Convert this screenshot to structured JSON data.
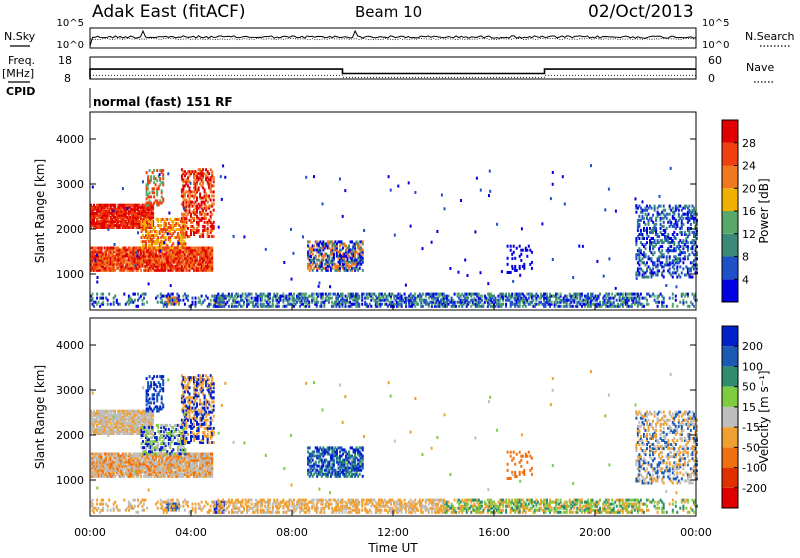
{
  "header": {
    "station": "Adak East (fitACF)",
    "beam": "Beam 10",
    "date": "02/Oct/2013"
  },
  "side_labels": {
    "nsky": "N.Sky",
    "freq": "Freq.",
    "freq_unit": "[MHz]",
    "cpid": "CPID",
    "nsearch": "N.Search",
    "nave": "Nave",
    "power_axis": "Power [dB]",
    "velocity_axis": "Velocity [m s⁻¹]"
  },
  "cpid_text": "normal (fast) 151 RF",
  "colors": {
    "power_scale": [
      "#0000e0",
      "#2050c8",
      "#3b8a78",
      "#58a86a",
      "#f0b000",
      "#f07820",
      "#f04010",
      "#e00000"
    ],
    "velocity_scale": [
      "#0020c8",
      "#1a5ab4",
      "#2f8d6e",
      "#80cc40",
      "#bebebe",
      "#f0a030",
      "#f07010",
      "#e03000",
      "#e00000"
    ],
    "ground_gray": "#bebebe"
  },
  "chart_data": [
    {
      "type": "line",
      "name": "noise",
      "series": [
        {
          "name": "N.Sky",
          "y_ticks": [
            "10^5",
            "10^0"
          ]
        },
        {
          "name": "N.Search",
          "y_ticks": [
            "10^5",
            "10^0"
          ]
        }
      ]
    },
    {
      "type": "line",
      "name": "frequency-nave",
      "left_axis": {
        "label": "Freq. [MHz]",
        "ticks": [
          18,
          8
        ]
      },
      "right_axis": {
        "label": "Nave",
        "ticks": [
          60,
          0
        ]
      },
      "freq_steps": [
        {
          "x_start": 0,
          "x_end": 10,
          "value": 12.5
        },
        {
          "x_start": 10,
          "x_end": 18,
          "value": 10.5
        },
        {
          "x_start": 18,
          "x_end": 24,
          "value": 12.5
        }
      ],
      "nave_level": 10
    },
    {
      "type": "heatmap",
      "name": "power",
      "ylabel": "Slant Range [km]",
      "y_ticks": [
        1000,
        2000,
        3000,
        4000
      ],
      "ylim": [
        200,
        4600
      ],
      "xlim": [
        0,
        24
      ],
      "colorbar_ticks": [
        4,
        8,
        12,
        16,
        20,
        24,
        28
      ],
      "colorbar_label": "Power [dB]"
    },
    {
      "type": "heatmap",
      "name": "velocity",
      "ylabel": "Slant Range [km]",
      "y_ticks": [
        1000,
        2000,
        3000,
        4000
      ],
      "ylim": [
        200,
        4600
      ],
      "xlim": [
        0,
        24
      ],
      "colorbar_ticks": [
        200,
        100,
        50,
        15,
        -15,
        -50,
        -100,
        -200
      ],
      "colorbar_label": "Velocity [m s⁻¹]",
      "x_tick_labels": [
        "00:00",
        "04:00",
        "08:00",
        "12:00",
        "16:00",
        "20:00",
        "00:00"
      ],
      "xlabel": "Time UT"
    }
  ]
}
